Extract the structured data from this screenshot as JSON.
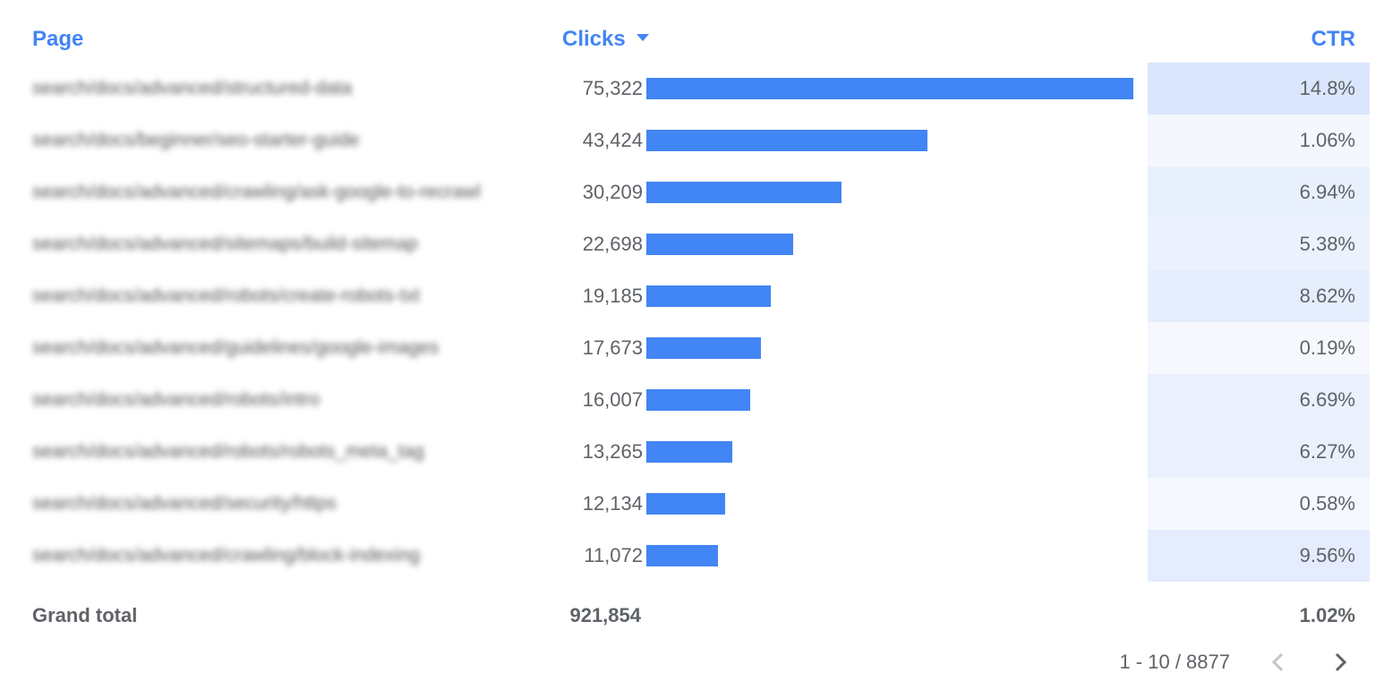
{
  "chart_data": {
    "type": "table",
    "columns": [
      "Page",
      "Clicks",
      "CTR"
    ],
    "sort": {
      "column": "Clicks",
      "direction": "descending"
    },
    "rows": [
      {
        "page": "search/docs/advanced/structured-data",
        "clicks": 75322,
        "clicks_label": "75,322",
        "ctr": 14.8,
        "ctr_label": "14.8%"
      },
      {
        "page": "search/docs/beginner/seo-starter-guide",
        "clicks": 43424,
        "clicks_label": "43,424",
        "ctr": 1.06,
        "ctr_label": "1.06%"
      },
      {
        "page": "search/docs/advanced/crawling/ask-google-to-recrawl",
        "clicks": 30209,
        "clicks_label": "30,209",
        "ctr": 6.94,
        "ctr_label": "6.94%"
      },
      {
        "page": "search/docs/advanced/sitemaps/build-sitemap",
        "clicks": 22698,
        "clicks_label": "22,698",
        "ctr": 5.38,
        "ctr_label": "5.38%"
      },
      {
        "page": "search/docs/advanced/robots/create-robots-txt",
        "clicks": 19185,
        "clicks_label": "19,185",
        "ctr": 8.62,
        "ctr_label": "8.62%"
      },
      {
        "page": "search/docs/advanced/guidelines/google-images",
        "clicks": 17673,
        "clicks_label": "17,673",
        "ctr": 0.19,
        "ctr_label": "0.19%"
      },
      {
        "page": "search/docs/advanced/robots/intro",
        "clicks": 16007,
        "clicks_label": "16,007",
        "ctr": 6.69,
        "ctr_label": "6.69%"
      },
      {
        "page": "search/docs/advanced/robots/robots_meta_tag",
        "clicks": 13265,
        "clicks_label": "13,265",
        "ctr": 6.27,
        "ctr_label": "6.27%"
      },
      {
        "page": "search/docs/advanced/security/https",
        "clicks": 12134,
        "clicks_label": "12,134",
        "ctr": 0.58,
        "ctr_label": "0.58%"
      },
      {
        "page": "search/docs/advanced/crawling/block-indexing",
        "clicks": 11072,
        "clicks_label": "11,072",
        "ctr": 9.56,
        "ctr_label": "9.56%"
      }
    ],
    "clicks_display": "bar",
    "ctr_display": "heatmap",
    "grand_total": {
      "label": "Grand total",
      "clicks": "921,854",
      "ctr": "1.02%"
    }
  },
  "pagination": {
    "range": "1 - 10 / 8877"
  },
  "colors": {
    "accent": "#4285f4",
    "heat_low": "#f6f8fe",
    "heat_high": "#dae6fc",
    "text": "#5f6368"
  }
}
